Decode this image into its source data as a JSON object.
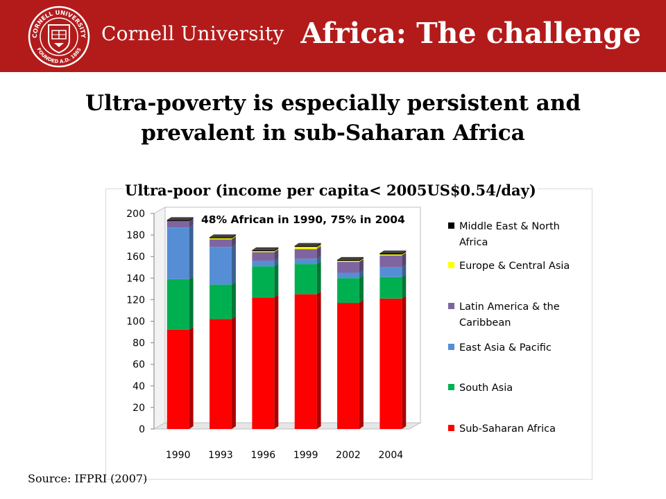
{
  "header": {
    "university": "Cornell University",
    "slide_title": "Africa: The challenge",
    "seal_text_top": "CORNELL UNIVERSITY",
    "seal_text_bottom": "FOUNDED A.D. 1865"
  },
  "headline": {
    "line1": "Ultra-poverty is especially persistent and",
    "line2": "prevalent in sub-Saharan Africa"
  },
  "source": "Source: IFPRI (2007)",
  "colors": {
    "header_bg": "#b31b1b",
    "Sub-Saharan Africa": "#ff0000",
    "South Asia": "#00b050",
    "East Asia & Pacific": "#558ed5",
    "Latin America & the Caribbean": "#7f659f",
    "Europe & Central Asia": "#ffff00",
    "Middle East & North Africa": "#000000"
  },
  "chart_data": {
    "type": "bar",
    "stacked": true,
    "title": "Ultra-poor (income per capita< 2005US$0.54/day)",
    "annotation": "48% African in 1990, 75% in 2004",
    "categories": [
      "1990",
      "1993",
      "1996",
      "1999",
      "2002",
      "2004"
    ],
    "ylim": [
      0,
      200
    ],
    "yticks": [
      0,
      20,
      40,
      60,
      80,
      100,
      120,
      140,
      160,
      180,
      200
    ],
    "grid": false,
    "legend_position": "right",
    "series": [
      {
        "name": "Sub-Saharan Africa",
        "values": [
          92,
          102,
          122,
          125,
          117,
          121
        ]
      },
      {
        "name": "South Asia",
        "values": [
          47,
          32,
          29,
          28,
          23,
          20
        ]
      },
      {
        "name": "East Asia & Pacific",
        "values": [
          48,
          35,
          5,
          5,
          5,
          9
        ]
      },
      {
        "name": "Latin America & the Caribbean",
        "values": [
          6,
          7,
          8,
          9,
          10,
          11
        ]
      },
      {
        "name": "Europe & Central Asia",
        "values": [
          0,
          1,
          1,
          2,
          1,
          1
        ]
      },
      {
        "name": "Middle East & North Africa",
        "values": [
          1,
          1,
          1,
          1,
          1,
          1
        ]
      }
    ],
    "legend": [
      {
        "name": "Middle East & North Africa",
        "lines": [
          "Middle East  & North",
          "Africa"
        ]
      },
      {
        "name": "Europe & Central Asia",
        "lines": [
          "Europe & Central Asia"
        ]
      },
      {
        "name": "Latin America & the Caribbean",
        "lines": [
          "Latin America & the",
          "Caribbean"
        ]
      },
      {
        "name": "East Asia & Pacific",
        "lines": [
          "East Asia & Pacific"
        ]
      },
      {
        "name": "South Asia",
        "lines": [
          "South Asia"
        ]
      },
      {
        "name": "Sub-Saharan Africa",
        "lines": [
          "Sub-Saharan Africa"
        ]
      }
    ]
  }
}
